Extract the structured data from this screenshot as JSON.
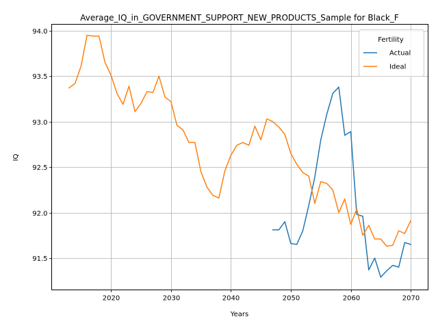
{
  "chart_data": {
    "type": "line",
    "title": "Average_IQ_in_GOVERNMENT_SUPPORT_NEW_PRODUCTS_Sample for Black_F",
    "xlabel": "Years",
    "ylabel": "IQ",
    "xlim": [
      2010.1,
      2072.9
    ],
    "ylim": [
      91.15,
      94.07
    ],
    "grid": true,
    "legend": {
      "title": "Fertility",
      "placement": "top-right"
    },
    "x_ticks": [
      2020,
      2030,
      2040,
      2050,
      2060,
      2070
    ],
    "y_ticks": [
      91.5,
      92.0,
      92.5,
      93.0,
      93.5,
      94.0
    ],
    "x_tick_labels": [
      "2020",
      "2030",
      "2040",
      "2050",
      "2060",
      "2070"
    ],
    "y_tick_labels": [
      "91.5",
      "92.0",
      "92.5",
      "93.0",
      "93.5",
      "94.0"
    ],
    "series": [
      {
        "name": "Actual",
        "color": "#1f77b4",
        "x": [
          2047,
          2048,
          2049,
          2050,
          2051,
          2052,
          2053,
          2054,
          2055,
          2056,
          2057,
          2058,
          2059,
          2060,
          2061,
          2062,
          2063,
          2064,
          2065,
          2066,
          2067,
          2068,
          2069,
          2070
        ],
        "y": [
          91.81,
          91.81,
          91.9,
          91.66,
          91.65,
          91.8,
          92.08,
          92.39,
          92.8,
          93.08,
          93.31,
          93.38,
          92.85,
          92.89,
          91.98,
          91.96,
          91.37,
          91.5,
          91.29,
          91.36,
          91.42,
          91.4,
          91.67,
          91.65
        ]
      },
      {
        "name": "Ideal",
        "color": "#ff7f0e",
        "x": [
          2013,
          2014,
          2015,
          2016,
          2017,
          2018,
          2019,
          2020,
          2021,
          2022,
          2023,
          2024,
          2025,
          2026,
          2027,
          2028,
          2029,
          2030,
          2031,
          2032,
          2033,
          2034,
          2035,
          2036,
          2037,
          2038,
          2039,
          2040,
          2041,
          2042,
          2043,
          2044,
          2045,
          2046,
          2047,
          2048,
          2049,
          2050,
          2051,
          2052,
          2053,
          2054,
          2055,
          2056,
          2057,
          2058,
          2059,
          2060,
          2061,
          2062,
          2063,
          2064,
          2065,
          2066,
          2067,
          2068,
          2069,
          2070
        ],
        "y": [
          93.37,
          93.42,
          93.61,
          93.95,
          93.94,
          93.94,
          93.65,
          93.51,
          93.31,
          93.19,
          93.39,
          93.11,
          93.2,
          93.33,
          93.32,
          93.5,
          93.27,
          93.22,
          92.96,
          92.91,
          92.77,
          92.77,
          92.45,
          92.28,
          92.19,
          92.16,
          92.46,
          92.63,
          92.74,
          92.77,
          92.74,
          92.95,
          92.8,
          93.03,
          93.0,
          92.94,
          92.86,
          92.65,
          92.53,
          92.44,
          92.4,
          92.1,
          92.34,
          92.32,
          92.25,
          92.0,
          92.15,
          91.87,
          92.04,
          91.75,
          91.86,
          91.71,
          91.71,
          91.63,
          91.64,
          91.8,
          91.77,
          91.91
        ]
      }
    ]
  }
}
